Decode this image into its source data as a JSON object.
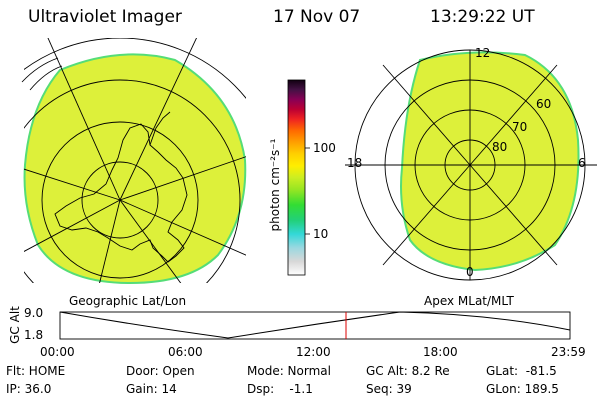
{
  "header": {
    "title": "Ultraviolet Imager",
    "date": "17 Nov 07",
    "time": "13:29:22 UT"
  },
  "left_map": {
    "label": "Geographic Lat/Lon"
  },
  "right_map": {
    "label": "Apex MLat/MLT",
    "mlt_labels": {
      "top": "12",
      "left": "18",
      "right": "6",
      "bottom": "0"
    },
    "lat_labels": [
      "60",
      "70",
      "80"
    ]
  },
  "colorbar": {
    "unit_label": "photon cm⁻²s⁻¹",
    "tick_labels": [
      "100",
      "10"
    ]
  },
  "orbit": {
    "axis_label": "GC Alt",
    "y_ticks": [
      "9.0",
      "1.8"
    ],
    "x_ticks": [
      "00:00",
      "06:00",
      "12:00",
      "18:00",
      "23:59"
    ],
    "marker_time": "13:29"
  },
  "status": {
    "filter": "Flt: HOME",
    "ip": "IP: 36.0",
    "door": "Door: Open",
    "gain": "Gain: 14",
    "mode": "Mode: Normal",
    "dsp": "Dsp:    -1.1",
    "gc_alt": "GC Alt: 8.2 Re",
    "seq": "Seq: 39",
    "glat": "GLat:  -81.5",
    "glon": "GLon: 189.5"
  },
  "colors": {
    "emission": "#ddf03a",
    "emission_edge": "#55dd77",
    "marker": "#dd0000"
  }
}
